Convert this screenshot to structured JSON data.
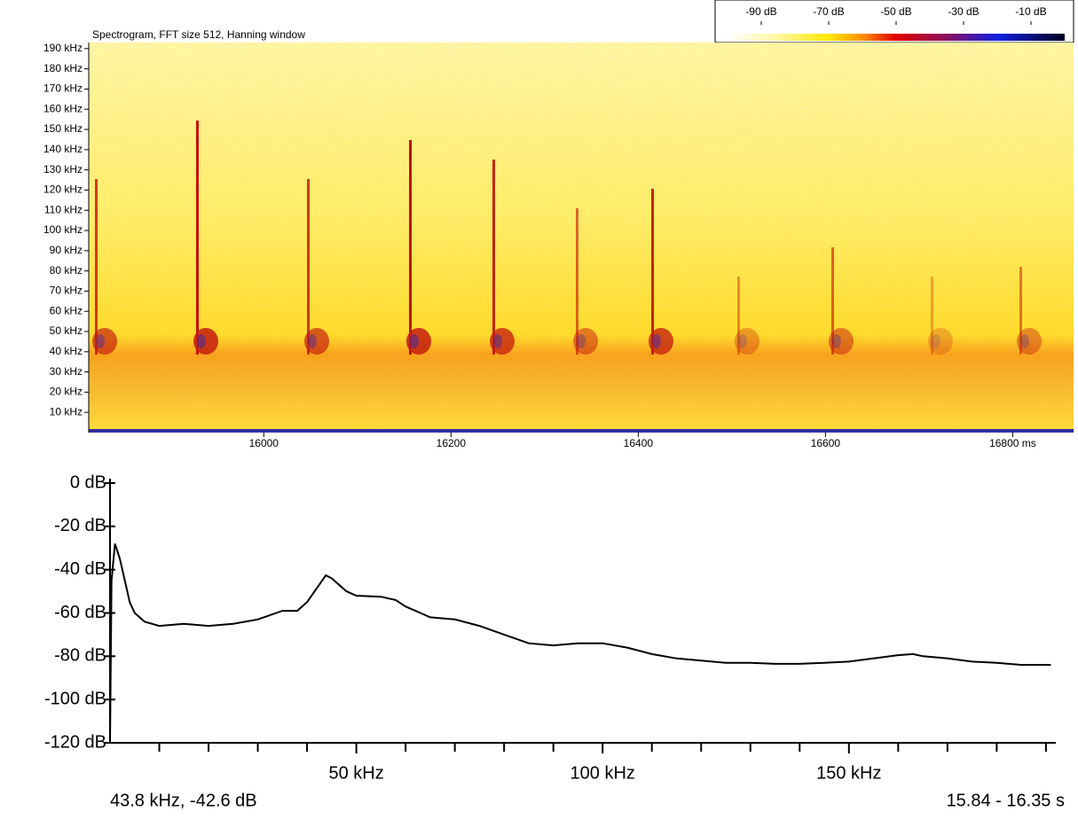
{
  "chart_data": [
    {
      "type": "spectrogram",
      "title": "Spectrogram, FFT size 512, Hanning window",
      "xlim": [
        15813,
        16865
      ],
      "xticks": [
        16000,
        16200,
        16400,
        16600,
        {
          "value": 16800,
          "label": "16800 ms"
        }
      ],
      "ylim": [
        0,
        193
      ],
      "yticks": [
        {
          "value": 10,
          "label": "10 kHz"
        },
        {
          "value": 20,
          "label": "20 kHz"
        },
        {
          "value": 30,
          "label": "30 kHz"
        },
        {
          "value": 40,
          "label": "40 kHz"
        },
        {
          "value": 50,
          "label": "50 kHz"
        },
        {
          "value": 60,
          "label": "60 kHz"
        },
        {
          "value": 70,
          "label": "70 kHz"
        },
        {
          "value": 80,
          "label": "80 kHz"
        },
        {
          "value": 90,
          "label": "90 kHz"
        },
        {
          "value": 100,
          "label": "100 kHz"
        },
        {
          "value": 110,
          "label": "110 kHz"
        },
        {
          "value": 120,
          "label": "120 kHz"
        },
        {
          "value": 130,
          "label": "130 kHz"
        },
        {
          "value": 140,
          "label": "140 kHz"
        },
        {
          "value": 150,
          "label": "150 kHz"
        },
        {
          "value": 160,
          "label": "160 kHz"
        },
        {
          "value": 170,
          "label": "170 kHz"
        },
        {
          "value": 180,
          "label": "180 kHz"
        },
        {
          "value": 190,
          "label": "190 kHz"
        }
      ],
      "colorbar": {
        "clim": [
          -100,
          0
        ],
        "ticks": [
          {
            "value": -90,
            "label": "-90 dB"
          },
          {
            "value": -70,
            "label": "-70 dB"
          },
          {
            "value": -50,
            "label": "-50 dB"
          },
          {
            "value": -30,
            "label": "-30 dB"
          },
          {
            "value": -10,
            "label": "-10 dB"
          }
        ],
        "stops": [
          {
            "value": -100,
            "color": "#ffffff"
          },
          {
            "value": -85,
            "color": "#fff7a0"
          },
          {
            "value": -70,
            "color": "#ffe800"
          },
          {
            "value": -60,
            "color": "#ff9000"
          },
          {
            "value": -50,
            "color": "#e00000"
          },
          {
            "value": -35,
            "color": "#8a1060"
          },
          {
            "value": -20,
            "color": "#1020e0"
          },
          {
            "value": 0,
            "color": "#000020"
          }
        ]
      }
    },
    {
      "type": "line",
      "color": "#000000",
      "xlim": [
        0,
        192
      ],
      "ylim": [
        -120,
        0
      ],
      "xticks": [
        {
          "value": 50,
          "label": "50 kHz"
        },
        {
          "value": 100,
          "label": "100 kHz"
        },
        {
          "value": 150,
          "label": "150 kHz"
        }
      ],
      "xminor_ticks": [
        10,
        20,
        30,
        40,
        60,
        70,
        80,
        90,
        110,
        120,
        130,
        140,
        160,
        170,
        180,
        190
      ],
      "yticks": [
        {
          "value": 0,
          "label": "0 dB"
        },
        {
          "value": -20,
          "label": "-20 dB"
        },
        {
          "value": -40,
          "label": "-40 dB"
        },
        {
          "value": -60,
          "label": "-60 dB"
        },
        {
          "value": -80,
          "label": "-80 dB"
        },
        {
          "value": -100,
          "label": "-100 dB"
        },
        {
          "value": -120,
          "label": "-120 dB"
        }
      ],
      "x": [
        0,
        0.3,
        1,
        2,
        3,
        4,
        5,
        7,
        10,
        15,
        20,
        25,
        30,
        35,
        38,
        40,
        43.8,
        45,
        48,
        50,
        55,
        58,
        60,
        63,
        65,
        70,
        75,
        80,
        85,
        90,
        95,
        100,
        105,
        110,
        115,
        120,
        125,
        130,
        135,
        140,
        145,
        150,
        155,
        160,
        163,
        165,
        170,
        175,
        180,
        185,
        191
      ],
      "values": [
        -120,
        -45,
        -28,
        -35,
        -45,
        -55,
        -60,
        -64,
        -66,
        -65,
        -66,
        -65,
        -63,
        -59,
        -59,
        -55,
        -42.6,
        -44,
        -50,
        -52,
        -52.5,
        -54,
        -57,
        -60,
        -62,
        -63,
        -66,
        -70,
        -74,
        -75,
        -74,
        -74,
        -76,
        -79,
        -81,
        -82,
        -83,
        -83,
        -83.5,
        -83.5,
        -83,
        -82.5,
        -81,
        -79.5,
        -79,
        -80,
        -81,
        -82.5,
        -83,
        -84,
        -84
      ]
    }
  ],
  "status": {
    "cursor": "43.8 kHz, -42.6 dB",
    "range": "15.84 - 16.35 s"
  }
}
